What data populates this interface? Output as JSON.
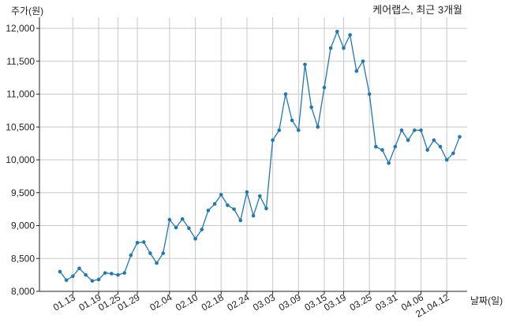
{
  "colors": {
    "line": "#1f77b4",
    "grid": "#c8c8c8",
    "axis": "#222222",
    "text": "#222222"
  },
  "chart_data": {
    "type": "line",
    "title": "케어랩스, 최근 3개월",
    "xlabel": "날짜(일)",
    "ylabel": "주가(원)",
    "ylim": [
      8000,
      12000
    ],
    "y_ticks": [
      8000,
      8500,
      9000,
      9500,
      10000,
      10500,
      11000,
      11500,
      12000
    ],
    "y_tick_labels": [
      "8,000",
      "8,500",
      "9,000",
      "9,500",
      "10,000",
      "10,500",
      "11,000",
      "11,500",
      "12,000"
    ],
    "x_tick_labels": [
      "01.13",
      "01.19",
      "01.25",
      "01.29",
      "02.04",
      "02.10",
      "02.18",
      "02.24",
      "03.03",
      "03.09",
      "03.15",
      "03.19",
      "03.25",
      "03.31",
      "04.06",
      "21.04.12"
    ],
    "x_tick_index": [
      2,
      6,
      9,
      12,
      17,
      21,
      25,
      29,
      33,
      37,
      41,
      44,
      48,
      52,
      56,
      60
    ],
    "grid": true,
    "series": [
      {
        "values": [
          8300,
          8170,
          8230,
          8350,
          8250,
          8160,
          8180,
          8280,
          8270,
          8250,
          8280,
          8550,
          8740,
          8750,
          8580,
          8430,
          8580,
          9090,
          8970,
          9100,
          8960,
          8800,
          8940,
          9230,
          9330,
          9470,
          9310,
          9250,
          9080,
          9510,
          9150,
          9450,
          9260,
          10300,
          10450,
          11000,
          10600,
          10450,
          11450,
          10800,
          10500,
          11100,
          11700,
          11950,
          11700,
          11900,
          11350,
          11500,
          11000,
          10200,
          10150,
          9950,
          10200,
          10450,
          10300,
          10450,
          10450,
          10150,
          10300,
          10200,
          10000,
          10100,
          10350
        ]
      }
    ]
  }
}
